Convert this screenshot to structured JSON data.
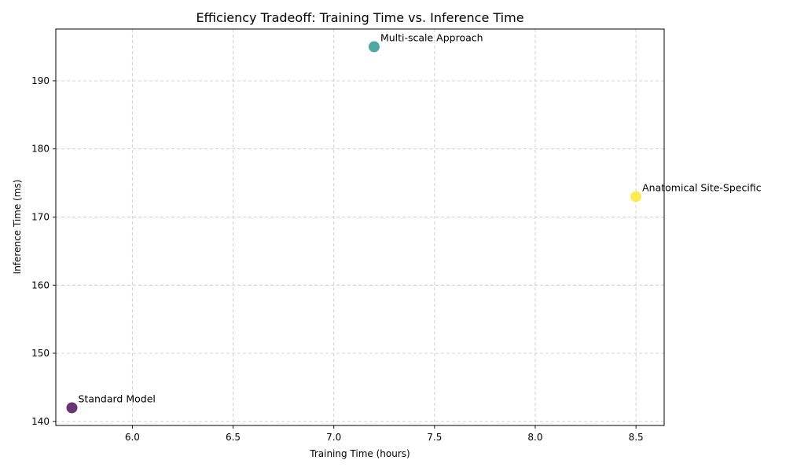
{
  "chart_data": {
    "type": "scatter",
    "title": "Efficiency Tradeoff: Training Time vs. Inference Time",
    "xlabel": "Training Time (hours)",
    "ylabel": "Inference Time (ms)",
    "xlim": [
      5.62,
      8.64
    ],
    "ylim": [
      139.4,
      197.6
    ],
    "xticks": [
      "6.0",
      "6.5",
      "7.0",
      "7.5",
      "8.0",
      "8.5"
    ],
    "yticks": [
      "140",
      "150",
      "160",
      "170",
      "180",
      "190"
    ],
    "grid": true,
    "legend": "none",
    "points": [
      {
        "label": "Standard Model",
        "x": 5.7,
        "y": 142,
        "color": "#440154"
      },
      {
        "label": "Multi-scale Approach",
        "x": 7.2,
        "y": 195,
        "color": "#21918c"
      },
      {
        "label": "Anatomical Site-Specific",
        "x": 8.5,
        "y": 173,
        "color": "#fde725"
      }
    ]
  }
}
